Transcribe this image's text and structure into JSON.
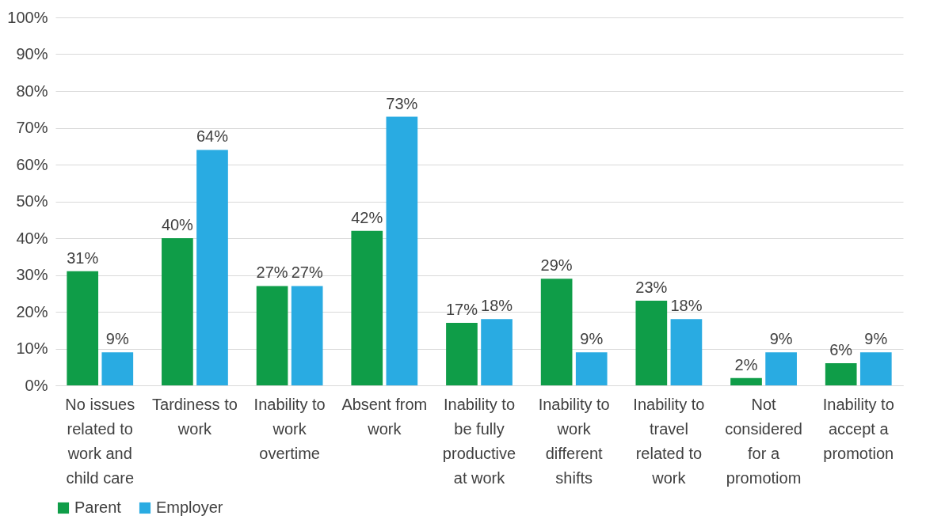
{
  "chart_data": {
    "type": "bar",
    "categories": [
      "No issues related to work and child care",
      "Tardiness to work",
      "Inability to work overtime",
      "Absent from work",
      "Inability to be fully productive at work",
      "Inability to work different shifts",
      "Inability to travel related to work",
      "Not considered for a promotiom",
      "Inability to accept a promotion"
    ],
    "series": [
      {
        "name": "Parent",
        "color": "#0f9d48",
        "values": [
          31,
          40,
          27,
          42,
          17,
          29,
          23,
          2,
          6
        ],
        "value_labels": [
          "31%",
          "40%",
          "27%",
          "42%",
          "17%",
          "29%",
          "23%",
          "2%",
          "6%"
        ]
      },
      {
        "name": "Employer",
        "color": "#29abe2",
        "values": [
          9,
          64,
          27,
          73,
          18,
          9,
          18,
          9,
          9
        ],
        "value_labels": [
          "9%",
          "64%",
          "27%",
          "73%",
          "18%",
          "9%",
          "18%",
          "9%",
          "9%"
        ]
      }
    ],
    "ylim": [
      0,
      100
    ],
    "yticks": [
      {
        "value": 0,
        "label": "0%"
      },
      {
        "value": 10,
        "label": "10%"
      },
      {
        "value": 20,
        "label": "20%"
      },
      {
        "value": 30,
        "label": "30%"
      },
      {
        "value": 40,
        "label": "40%"
      },
      {
        "value": 50,
        "label": "50%"
      },
      {
        "value": 60,
        "label": "60%"
      },
      {
        "value": 70,
        "label": "70%"
      },
      {
        "value": 80,
        "label": "80%"
      },
      {
        "value": 90,
        "label": "90%"
      },
      {
        "value": 100,
        "label": "100%"
      }
    ],
    "grid": "y",
    "legend": "bottom"
  }
}
